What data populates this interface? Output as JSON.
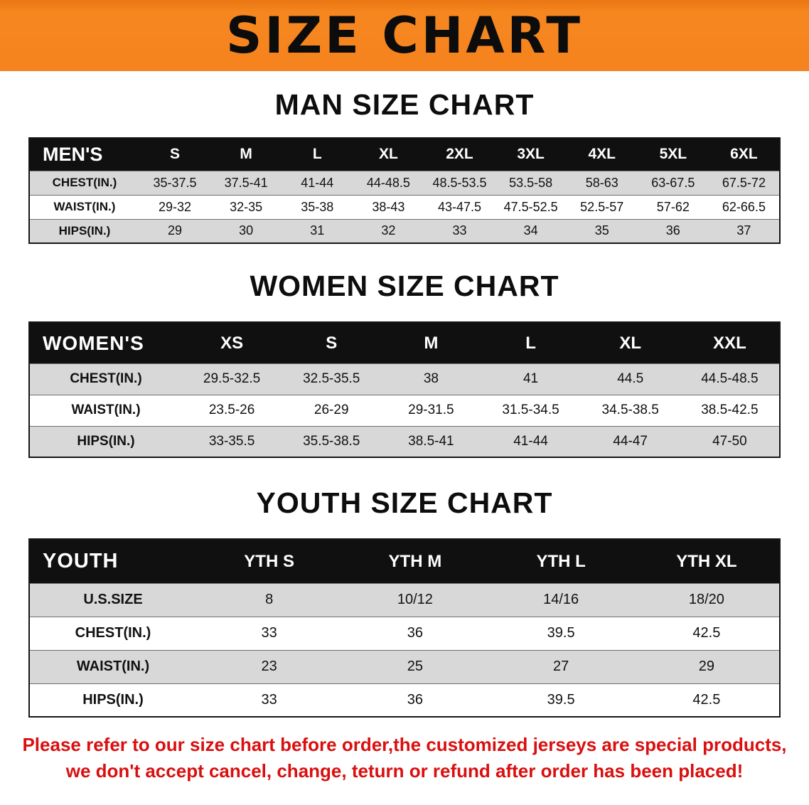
{
  "banner": {
    "title": "SIZE CHART",
    "bg_color": "#f5831f",
    "text_color": "#0c0c0c"
  },
  "colors": {
    "table_header_bg": "#101010",
    "table_header_text": "#ffffff",
    "row_stripe": "#d8d8d8",
    "notice_text": "#da0f0f"
  },
  "sections": [
    {
      "id": "man",
      "heading": "MAN SIZE CHART",
      "table": {
        "corner": "MEN'S",
        "columns": [
          "S",
          "M",
          "L",
          "XL",
          "2XL",
          "3XL",
          "4XL",
          "5XL",
          "6XL"
        ],
        "rows": [
          {
            "label": "CHEST(IN.)",
            "values": [
              "35-37.5",
              "37.5-41",
              "41-44",
              "44-48.5",
              "48.5-53.5",
              "53.5-58",
              "58-63",
              "63-67.5",
              "67.5-72"
            ]
          },
          {
            "label": "WAIST(IN.)",
            "values": [
              "29-32",
              "32-35",
              "35-38",
              "38-43",
              "43-47.5",
              "47.5-52.5",
              "52.5-57",
              "57-62",
              "62-66.5"
            ]
          },
          {
            "label": "HIPS(IN.)",
            "values": [
              "29",
              "30",
              "31",
              "32",
              "33",
              "34",
              "35",
              "36",
              "37"
            ]
          }
        ]
      }
    },
    {
      "id": "women",
      "heading": "WOMEN SIZE CHART",
      "table": {
        "corner": "WOMEN'S",
        "columns": [
          "XS",
          "S",
          "M",
          "L",
          "XL",
          "XXL"
        ],
        "rows": [
          {
            "label": "CHEST(IN.)",
            "values": [
              "29.5-32.5",
              "32.5-35.5",
              "38",
              "41",
              "44.5",
              "44.5-48.5"
            ]
          },
          {
            "label": "WAIST(IN.)",
            "values": [
              "23.5-26",
              "26-29",
              "29-31.5",
              "31.5-34.5",
              "34.5-38.5",
              "38.5-42.5"
            ]
          },
          {
            "label": "HIPS(IN.)",
            "values": [
              "33-35.5",
              "35.5-38.5",
              "38.5-41",
              "41-44",
              "44-47",
              "47-50"
            ]
          }
        ]
      }
    },
    {
      "id": "youth",
      "heading": "YOUTH SIZE CHART",
      "table": {
        "corner": "YOUTH",
        "columns": [
          "YTH S",
          "YTH M",
          "YTH L",
          "YTH XL"
        ],
        "rows": [
          {
            "label": "U.S.SIZE",
            "values": [
              "8",
              "10/12",
              "14/16",
              "18/20"
            ]
          },
          {
            "label": "CHEST(IN.)",
            "values": [
              "33",
              "36",
              "39.5",
              "42.5"
            ]
          },
          {
            "label": "WAIST(IN.)",
            "values": [
              "23",
              "25",
              "27",
              "29"
            ]
          },
          {
            "label": "HIPS(IN.)",
            "values": [
              "33",
              "36",
              "39.5",
              "42.5"
            ]
          }
        ]
      }
    }
  ],
  "footer": {
    "line1": "Please refer to our size chart before order,the customized jerseys are special products,",
    "line2": "we don't accept cancel, change, teturn or refund after order has been placed!"
  }
}
